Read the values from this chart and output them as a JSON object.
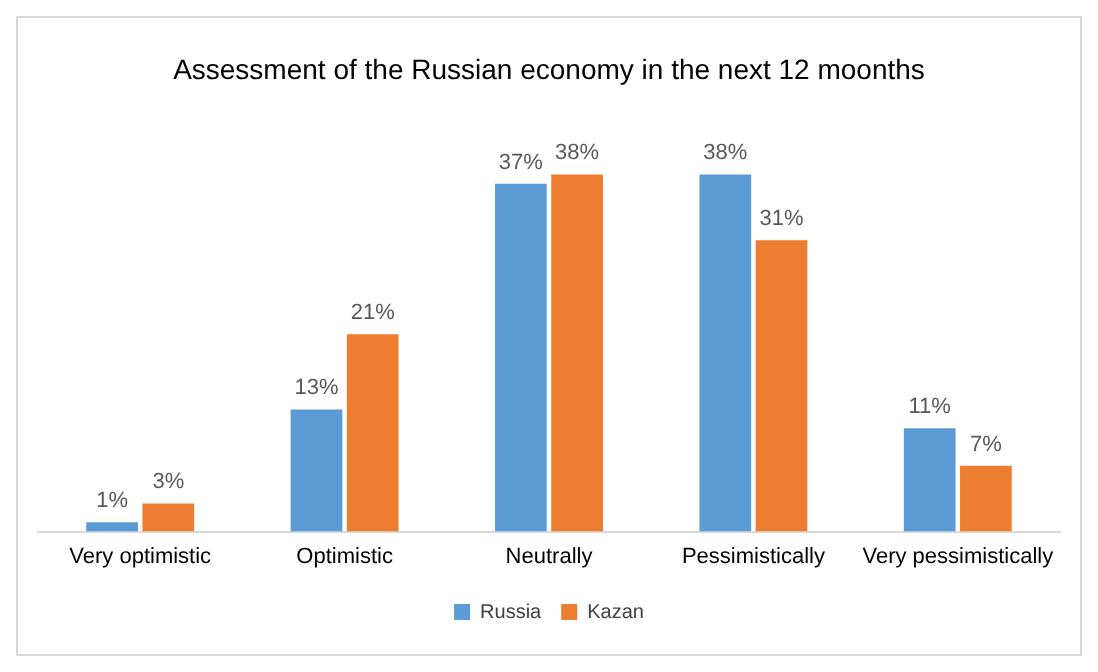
{
  "chart_data": {
    "type": "bar",
    "title": "Assessment of the Russian economy in the next 12 moonths",
    "categories": [
      "Very optimistic",
      "Optimistic",
      "Neutrally",
      "Pessimistically",
      "Very pessimistically"
    ],
    "series": [
      {
        "name": "Russia",
        "color": "#5b9bd5",
        "values": [
          1,
          13,
          37,
          38,
          11
        ],
        "value_labels": [
          "1%",
          "13%",
          "37%",
          "38%",
          "11%"
        ]
      },
      {
        "name": "Kazan",
        "color": "#ed7d31",
        "values": [
          3,
          21,
          38,
          31,
          7
        ],
        "value_labels": [
          "3%",
          "21%",
          "38%",
          "31%",
          "7%"
        ]
      }
    ],
    "grid": false,
    "legend": "bottom"
  }
}
